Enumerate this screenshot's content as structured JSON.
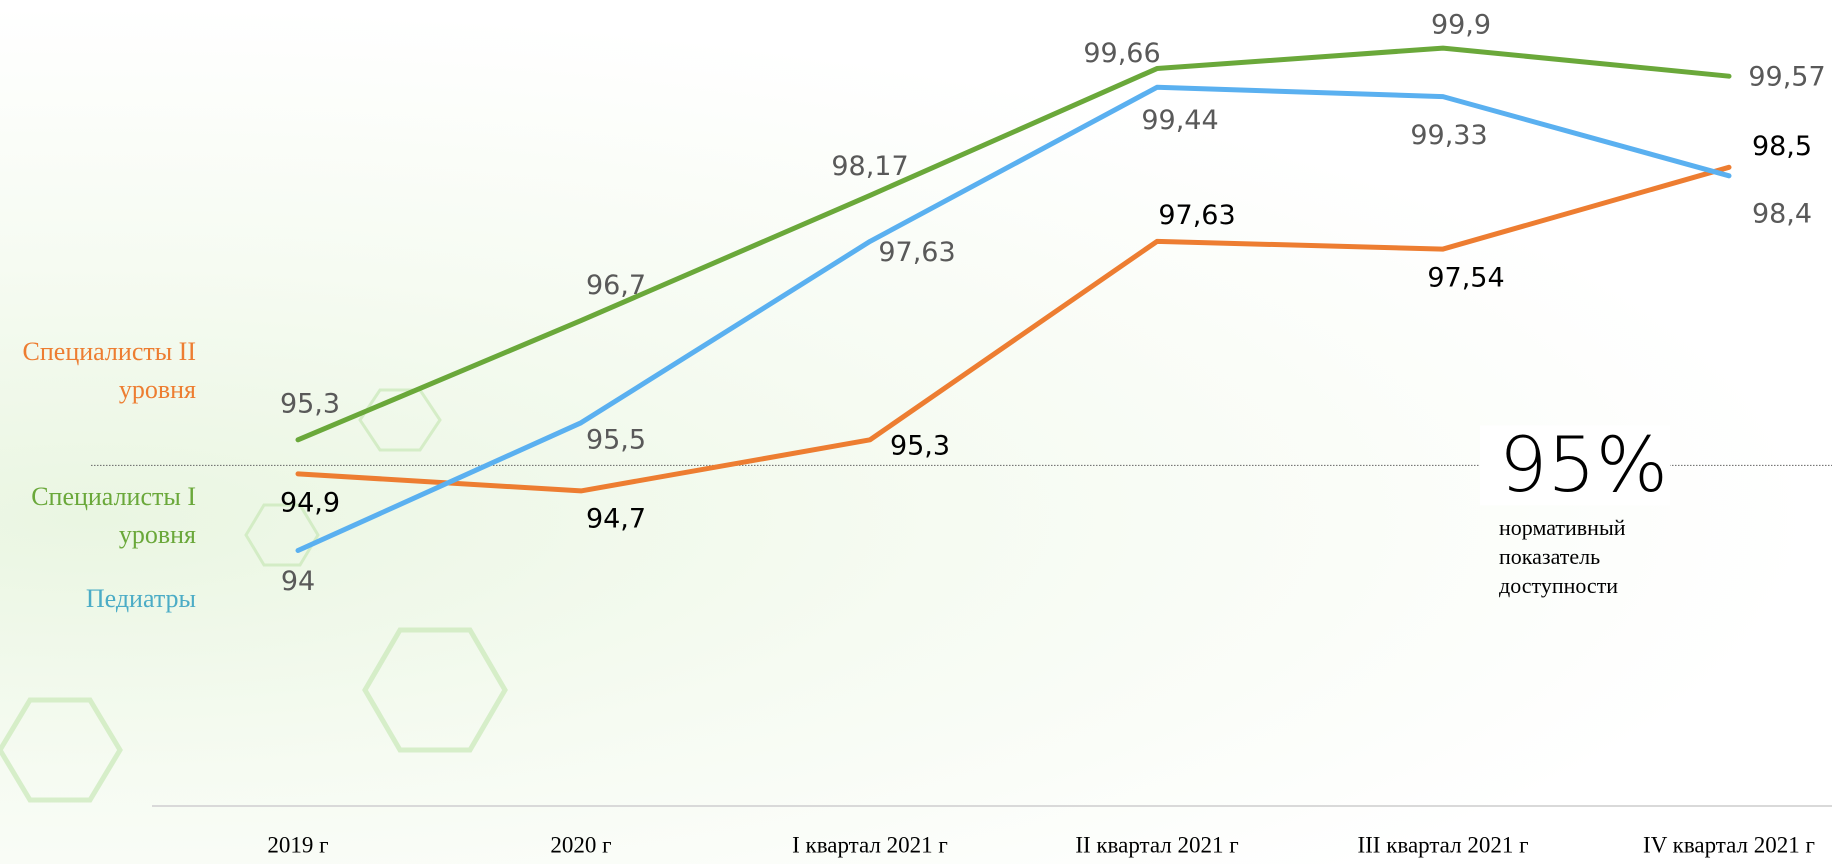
{
  "chart_data": {
    "type": "line",
    "categories": [
      "2019 г",
      "2020 г",
      "I квартал 2021 г",
      "II квартал 2021 г",
      "III квартал 2021 г",
      "IV квартал 2021 г"
    ],
    "series": [
      {
        "name": "Специалисты II уровня",
        "color": "#ed7d31",
        "values": [
          94.9,
          94.7,
          95.3,
          97.63,
          97.54,
          98.5
        ],
        "value_labels": [
          "94,9",
          "94,7",
          "95,3",
          "97,63",
          "97,54",
          "98,5"
        ]
      },
      {
        "name": "Специалисты I уровня",
        "color": "#6aa83a",
        "values": [
          95.3,
          96.7,
          98.17,
          99.66,
          99.9,
          99.57
        ],
        "value_labels": [
          "95,3",
          "96,7",
          "98,17",
          "99,66",
          "99,9",
          "99,57"
        ]
      },
      {
        "name": "Педиатры",
        "color": "#5ab0f0",
        "values": [
          94,
          95.5,
          97.63,
          99.44,
          99.33,
          98.4
        ],
        "value_labels": [
          "94",
          "95,5",
          "97,63",
          "99,44",
          "99,33",
          "98,4"
        ]
      }
    ],
    "ylim": [
      91,
      100.5
    ],
    "reference_line": {
      "value": 95,
      "label": "95%",
      "note": "нормативный показатель доступности"
    }
  }
}
